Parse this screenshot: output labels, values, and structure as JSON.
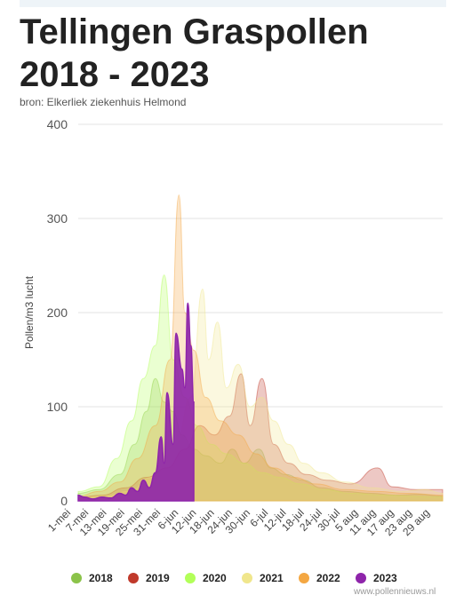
{
  "header": {
    "title": "Tellingen Graspollen 2018 - 2023",
    "source": "bron: Elkerliek ziekenhuis Helmond"
  },
  "footer": {
    "watermark": "www.pollennieuws.nl"
  },
  "chart_data": {
    "type": "area",
    "title": "Tellingen Graspollen 2018 - 2023",
    "xlabel": "",
    "ylabel": "Pollen/m3 lucht",
    "ylim": [
      0,
      400
    ],
    "yticks": [
      0,
      100,
      200,
      300,
      400
    ],
    "grid": true,
    "legend_position": "bottom",
    "x_tick_labels": [
      "1-mei",
      "7-mei",
      "13-mei",
      "19-mei",
      "25-mei",
      "31-mei",
      "6-jun",
      "12-jun",
      "18-jun",
      "24-jun",
      "30-jun",
      "6-jul",
      "12-jul",
      "18-jul",
      "24-jul",
      "30-jul",
      "5 aug",
      "11 aug",
      "17 aug",
      "23 aug",
      "29 aug"
    ],
    "x_start": "1-mei",
    "x_end": "1-sep",
    "series": [
      {
        "name": "2018",
        "color": "#8bc34a",
        "values": [
          {
            "x": "1-mei",
            "y": 8
          },
          {
            "x": "8-mei",
            "y": 12
          },
          {
            "x": "15-mei",
            "y": 28
          },
          {
            "x": "20-mei",
            "y": 60
          },
          {
            "x": "24-mei",
            "y": 95
          },
          {
            "x": "27-mei",
            "y": 130
          },
          {
            "x": "30-mei",
            "y": 105
          },
          {
            "x": "2-jun",
            "y": 95
          },
          {
            "x": "5-jun",
            "y": 70
          },
          {
            "x": "9-jun",
            "y": 55
          },
          {
            "x": "13-jun",
            "y": 48
          },
          {
            "x": "18-jun",
            "y": 40
          },
          {
            "x": "22-jun",
            "y": 55
          },
          {
            "x": "26-jun",
            "y": 40
          },
          {
            "x": "1-jul",
            "y": 55
          },
          {
            "x": "5-jul",
            "y": 35
          },
          {
            "x": "10-jul",
            "y": 28
          },
          {
            "x": "16-jul",
            "y": 22
          },
          {
            "x": "22-jul",
            "y": 14
          },
          {
            "x": "30-jul",
            "y": 10
          },
          {
            "x": "8 aug",
            "y": 8
          },
          {
            "x": "16 aug",
            "y": 6
          },
          {
            "x": "24 aug",
            "y": 7
          },
          {
            "x": "1-sep",
            "y": 5
          }
        ]
      },
      {
        "name": "2019",
        "color": "#c0392b",
        "values": [
          {
            "x": "1-mei",
            "y": 4
          },
          {
            "x": "9-mei",
            "y": 6
          },
          {
            "x": "17-mei",
            "y": 14
          },
          {
            "x": "24-mei",
            "y": 25
          },
          {
            "x": "31-mei",
            "y": 35
          },
          {
            "x": "6-jun",
            "y": 55
          },
          {
            "x": "11-jun",
            "y": 80
          },
          {
            "x": "16-jun",
            "y": 70
          },
          {
            "x": "21-jun",
            "y": 90
          },
          {
            "x": "25-jun",
            "y": 135
          },
          {
            "x": "28-jun",
            "y": 80
          },
          {
            "x": "2-jul",
            "y": 130
          },
          {
            "x": "6-jul",
            "y": 60
          },
          {
            "x": "11-jul",
            "y": 40
          },
          {
            "x": "17-jul",
            "y": 28
          },
          {
            "x": "24-jul",
            "y": 22
          },
          {
            "x": "1 aug",
            "y": 18
          },
          {
            "x": "10 aug",
            "y": 35
          },
          {
            "x": "15 aug",
            "y": 15
          },
          {
            "x": "23 aug",
            "y": 12
          },
          {
            "x": "1-sep",
            "y": 12
          }
        ]
      },
      {
        "name": "2020",
        "color": "#b2ff59",
        "values": [
          {
            "x": "1-mei",
            "y": 10
          },
          {
            "x": "8-mei",
            "y": 15
          },
          {
            "x": "14-mei",
            "y": 45
          },
          {
            "x": "19-mei",
            "y": 85
          },
          {
            "x": "23-mei",
            "y": 130
          },
          {
            "x": "27-mei",
            "y": 165
          },
          {
            "x": "30-mei",
            "y": 240
          },
          {
            "x": "2-jun",
            "y": 150
          },
          {
            "x": "6-jun",
            "y": 110
          },
          {
            "x": "10-jun",
            "y": 80
          },
          {
            "x": "15-jun",
            "y": 60
          },
          {
            "x": "20-jun",
            "y": 50
          },
          {
            "x": "26-jun",
            "y": 40
          },
          {
            "x": "2-jul",
            "y": 30
          },
          {
            "x": "8-jul",
            "y": 25
          },
          {
            "x": "15-jul",
            "y": 18
          },
          {
            "x": "23-jul",
            "y": 12
          },
          {
            "x": "1 aug",
            "y": 8
          },
          {
            "x": "12 aug",
            "y": 6
          },
          {
            "x": "22 aug",
            "y": 5
          },
          {
            "x": "1-sep",
            "y": 4
          }
        ]
      },
      {
        "name": "2021",
        "color": "#f0e68c",
        "values": [
          {
            "x": "1-mei",
            "y": 3
          },
          {
            "x": "10-mei",
            "y": 5
          },
          {
            "x": "18-mei",
            "y": 10
          },
          {
            "x": "26-mei",
            "y": 25
          },
          {
            "x": "3-jun",
            "y": 60
          },
          {
            "x": "8-jun",
            "y": 110
          },
          {
            "x": "12-jun",
            "y": 225
          },
          {
            "x": "14-jun",
            "y": 150
          },
          {
            "x": "17-jun",
            "y": 190
          },
          {
            "x": "20-jun",
            "y": 120
          },
          {
            "x": "24-jun",
            "y": 145
          },
          {
            "x": "28-jun",
            "y": 100
          },
          {
            "x": "2-jul",
            "y": 110
          },
          {
            "x": "6-jul",
            "y": 85
          },
          {
            "x": "11-jul",
            "y": 60
          },
          {
            "x": "16-jul",
            "y": 40
          },
          {
            "x": "22-jul",
            "y": 30
          },
          {
            "x": "30-jul",
            "y": 20
          },
          {
            "x": "8 aug",
            "y": 14
          },
          {
            "x": "18 aug",
            "y": 10
          },
          {
            "x": "26 aug",
            "y": 12
          },
          {
            "x": "1-sep",
            "y": 8
          }
        ]
      },
      {
        "name": "2022",
        "color": "#f4a742",
        "values": [
          {
            "x": "1-mei",
            "y": 5
          },
          {
            "x": "8-mei",
            "y": 10
          },
          {
            "x": "15-mei",
            "y": 20
          },
          {
            "x": "21-mei",
            "y": 45
          },
          {
            "x": "27-mei",
            "y": 80
          },
          {
            "x": "1-jun",
            "y": 150
          },
          {
            "x": "4-jun",
            "y": 325
          },
          {
            "x": "6-jun",
            "y": 200
          },
          {
            "x": "9-jun",
            "y": 160
          },
          {
            "x": "13-jun",
            "y": 110
          },
          {
            "x": "18-jun",
            "y": 85
          },
          {
            "x": "24-jun",
            "y": 70
          },
          {
            "x": "30-jun",
            "y": 50
          },
          {
            "x": "6-jul",
            "y": 35
          },
          {
            "x": "13-jul",
            "y": 25
          },
          {
            "x": "20-jul",
            "y": 18
          },
          {
            "x": "30-jul",
            "y": 12
          },
          {
            "x": "10 aug",
            "y": 10
          },
          {
            "x": "20 aug",
            "y": 8
          },
          {
            "x": "1-sep",
            "y": 6
          }
        ]
      },
      {
        "name": "2023",
        "color": "#8e24aa",
        "values": [
          {
            "x": "1-mei",
            "y": 6
          },
          {
            "x": "3-mei",
            "y": 4
          },
          {
            "x": "6-mei",
            "y": 2
          },
          {
            "x": "9-mei",
            "y": 4
          },
          {
            "x": "12-mei",
            "y": 3
          },
          {
            "x": "15-mei",
            "y": 8
          },
          {
            "x": "17-mei",
            "y": 6
          },
          {
            "x": "19-mei",
            "y": 14
          },
          {
            "x": "21-mei",
            "y": 10
          },
          {
            "x": "23-mei",
            "y": 22
          },
          {
            "x": "25-mei",
            "y": 14
          },
          {
            "x": "27-mei",
            "y": 30
          },
          {
            "x": "29-mei",
            "y": 68
          },
          {
            "x": "30-mei",
            "y": 40
          },
          {
            "x": "31-mei",
            "y": 115
          },
          {
            "x": "2-jun",
            "y": 60
          },
          {
            "x": "3-jun",
            "y": 178
          },
          {
            "x": "5-jun",
            "y": 140
          },
          {
            "x": "6-jun",
            "y": 120
          },
          {
            "x": "7-jun",
            "y": 210
          },
          {
            "x": "8-jun",
            "y": 165
          },
          {
            "x": "9-jun",
            "y": 105
          }
        ]
      }
    ]
  }
}
